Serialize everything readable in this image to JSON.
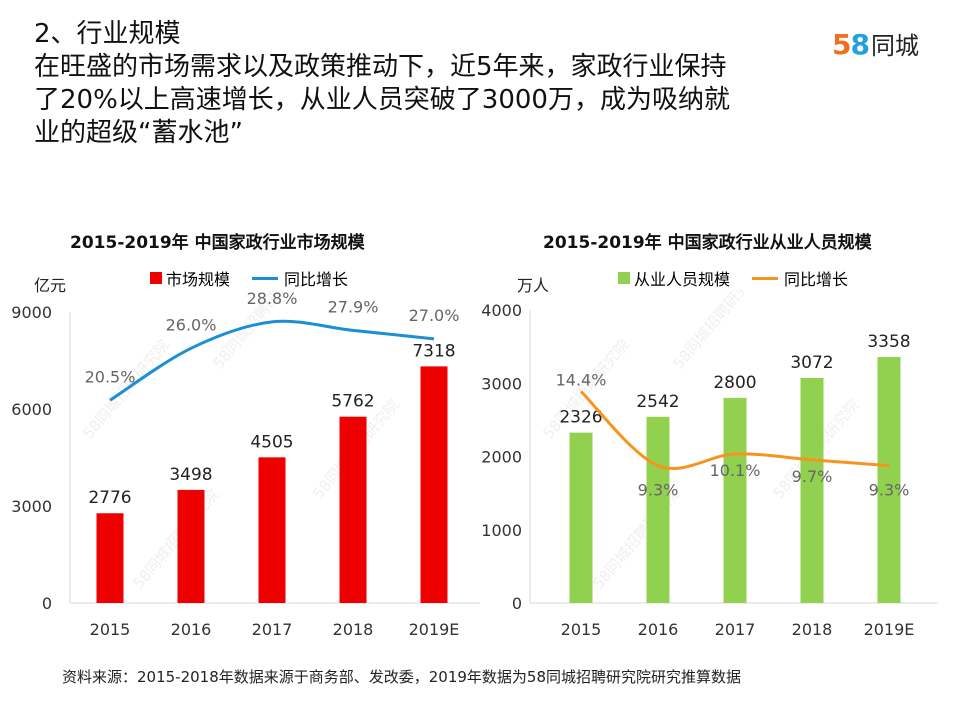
{
  "header": {
    "line1": "2、行业规模",
    "line2": "在旺盛的市场需求以及政策推动下，近5年来，家政行业保持",
    "line3": "了20%以上高速增长，从业人员突破了3000万，成为吸纳就",
    "line4": "业的超级“蓄水池”"
  },
  "logo": {
    "number_5": "5",
    "number_8": "8",
    "text": "同城",
    "color_5": "#f36f20",
    "color_8": "#22a0e0"
  },
  "source": "资料来源：2015-2018年数据来源于商务部、发改委，2019年数据为58同城招聘研究院研究推算数据",
  "watermark": "58同城招聘研究院",
  "chart_data": [
    {
      "type": "bar",
      "title": "2015-2019年 中国家政行业市场规模",
      "ylabel": "亿元",
      "categories": [
        "2015",
        "2016",
        "2017",
        "2018",
        "2019E"
      ],
      "ylim": [
        0,
        9000
      ],
      "yticks": [
        0,
        3000,
        6000,
        9000
      ],
      "series": [
        {
          "name": "市场规模",
          "kind": "bar",
          "color": "#ee0000",
          "values": [
            2776,
            3498,
            4505,
            5762,
            7318
          ]
        },
        {
          "name": "同比增长",
          "kind": "line",
          "color": "#1b8fd6",
          "values": [
            20.5,
            26.0,
            28.8,
            27.9,
            27.0
          ],
          "labels": [
            "20.5%",
            "26.0%",
            "28.8%",
            "27.9%",
            "27.0%"
          ]
        }
      ]
    },
    {
      "type": "bar",
      "title": "2015-2019年 中国家政行业从业人员规模",
      "ylabel": "万人",
      "categories": [
        "2015",
        "2016",
        "2017",
        "2018",
        "2019E"
      ],
      "ylim": [
        0,
        4000
      ],
      "yticks": [
        0,
        1000,
        2000,
        3000,
        4000
      ],
      "series": [
        {
          "name": "从业人员规模",
          "kind": "bar",
          "color": "#92d050",
          "values": [
            2326,
            2542,
            2800,
            3072,
            3358
          ]
        },
        {
          "name": "同比增长",
          "kind": "line",
          "color": "#f7941d",
          "values": [
            14.4,
            9.3,
            10.1,
            9.7,
            9.3
          ],
          "labels": [
            "14.4%",
            "9.3%",
            "10.1%",
            "9.7%",
            "9.3%"
          ]
        }
      ]
    }
  ]
}
